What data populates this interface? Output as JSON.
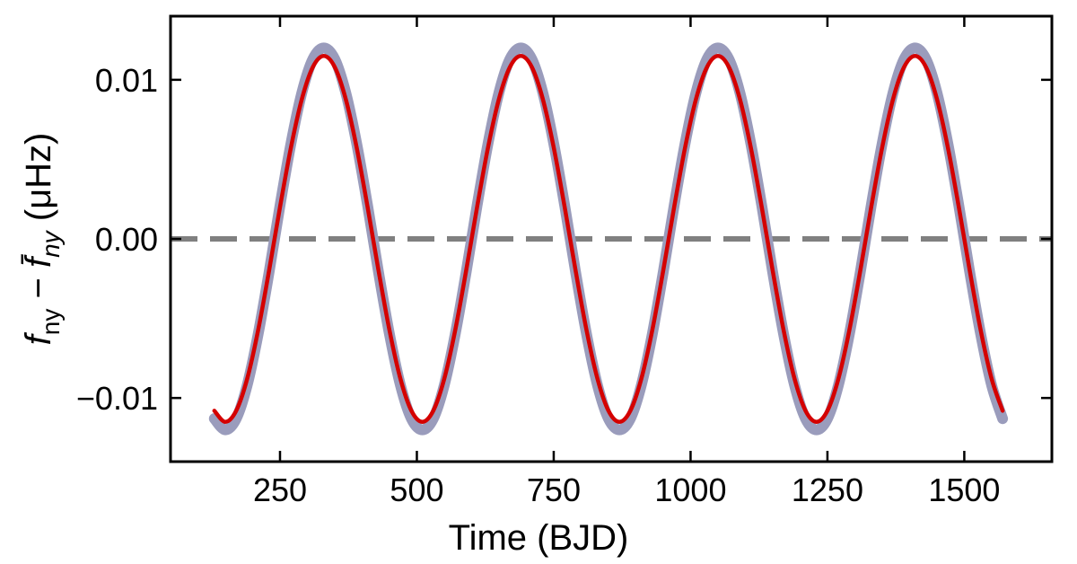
{
  "chart_data": {
    "type": "line",
    "x_label": "Time (BJD)",
    "y_label": [
      "f",
      "ny",
      " − ",
      "f̄",
      "ny",
      " (μHz)"
    ],
    "x": [
      130,
      150,
      170,
      190,
      210,
      230,
      250,
      270,
      290,
      310,
      330,
      350,
      370,
      390,
      410,
      430,
      450,
      470,
      490,
      510,
      530,
      550,
      570,
      590,
      610,
      630,
      650,
      670,
      690,
      710,
      730,
      750,
      770,
      790,
      810,
      830,
      850,
      870,
      890,
      910,
      930,
      950,
      970,
      990,
      1010,
      1030,
      1050,
      1070,
      1090,
      1110,
      1130,
      1150,
      1170,
      1190,
      1210,
      1230,
      1250,
      1270,
      1290,
      1310,
      1330,
      1350,
      1370,
      1390,
      1410,
      1430,
      1450,
      1470,
      1490,
      1510,
      1530,
      1550,
      1570
    ],
    "series": [
      {
        "color": "#9a9cbc",
        "values": [
          -0.0113,
          -0.012,
          -0.0113,
          -0.0092,
          -0.006,
          -0.0021,
          0.0021,
          0.006,
          0.0092,
          0.0113,
          0.012,
          0.0113,
          0.0092,
          0.006,
          0.0021,
          -0.0021,
          -0.006,
          -0.0092,
          -0.0113,
          -0.012,
          -0.0113,
          -0.0092,
          -0.006,
          -0.0021,
          0.0021,
          0.006,
          0.0092,
          0.0113,
          0.012,
          0.0113,
          0.0092,
          0.006,
          0.0021,
          -0.0021,
          -0.006,
          -0.0092,
          -0.0113,
          -0.012,
          -0.0113,
          -0.0092,
          -0.006,
          -0.0021,
          0.0021,
          0.006,
          0.0092,
          0.0113,
          0.012,
          0.0113,
          0.0092,
          0.006,
          0.0021,
          -0.0021,
          -0.006,
          -0.0092,
          -0.0113,
          -0.012,
          -0.0113,
          -0.0092,
          -0.006,
          -0.0021,
          0.0021,
          0.006,
          0.0092,
          0.0113,
          0.012,
          0.0113,
          0.0092,
          0.006,
          0.0021,
          -0.0021,
          -0.006,
          -0.0092,
          -0.0113
        ]
      },
      {
        "color": "#d40000",
        "values": [
          -0.0108,
          -0.0115,
          -0.0108,
          -0.0088,
          -0.00575,
          -0.002,
          0.002,
          0.00575,
          0.0088,
          0.0108,
          0.0115,
          0.0108,
          0.0088,
          0.00575,
          0.002,
          -0.002,
          -0.00575,
          -0.0088,
          -0.0108,
          -0.0115,
          -0.0108,
          -0.0088,
          -0.00575,
          -0.002,
          0.002,
          0.00575,
          0.0088,
          0.0108,
          0.0115,
          0.0108,
          0.0088,
          0.00575,
          0.002,
          -0.002,
          -0.00575,
          -0.0088,
          -0.0108,
          -0.0115,
          -0.0108,
          -0.0088,
          -0.00575,
          -0.002,
          0.002,
          0.00575,
          0.0088,
          0.0108,
          0.0115,
          0.0108,
          0.0088,
          0.00575,
          0.002,
          -0.002,
          -0.00575,
          -0.0088,
          -0.0108,
          -0.0115,
          -0.0108,
          -0.0088,
          -0.00575,
          -0.002,
          0.002,
          0.00575,
          0.0088,
          0.0108,
          0.0115,
          0.0108,
          0.0088,
          0.00575,
          0.002,
          -0.002,
          -0.00575,
          -0.0088,
          -0.0108
        ]
      }
    ],
    "reference_line": {
      "y": 0,
      "color": "#808080",
      "dashed": true
    },
    "xlim": [
      50,
      1660
    ],
    "ylim": [
      -0.014,
      0.014
    ],
    "xticks": [
      250,
      500,
      750,
      1000,
      1250,
      1500
    ],
    "yticks": [
      {
        "value": -0.01,
        "label": "−0.01"
      },
      {
        "value": 0,
        "label": "0.00"
      },
      {
        "value": 0.01,
        "label": "0.01"
      }
    ],
    "grid": false
  }
}
